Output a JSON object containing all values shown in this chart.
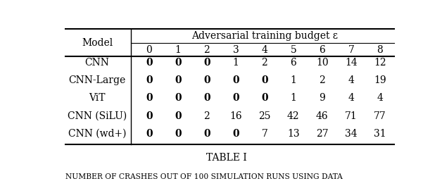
{
  "col_header_top": "Adversarial training budget ε",
  "col_header_nums": [
    "0",
    "1",
    "2",
    "3",
    "4",
    "5",
    "6",
    "7",
    "8"
  ],
  "row_header": "Model",
  "models": [
    "CNN",
    "CNN-Large",
    "ViT",
    "CNN (SiLU)",
    "CNN (wd+)"
  ],
  "data": [
    [
      "0",
      "0",
      "0",
      "1",
      "2",
      "6",
      "10",
      "14",
      "12"
    ],
    [
      "0",
      "0",
      "0",
      "0",
      "0",
      "1",
      "2",
      "4",
      "19"
    ],
    [
      "0",
      "0",
      "0",
      "0",
      "0",
      "1",
      "9",
      "4",
      "4"
    ],
    [
      "0",
      "0",
      "2",
      "16",
      "25",
      "42",
      "46",
      "71",
      "77"
    ],
    [
      "0",
      "0",
      "0",
      "0",
      "7",
      "13",
      "27",
      "34",
      "31"
    ]
  ],
  "bold_data": {
    "CNN": [
      0,
      1,
      2
    ],
    "CNN-Large": [
      0,
      1,
      2,
      3,
      4
    ],
    "ViT": [
      0,
      1,
      2,
      3,
      4
    ],
    "CNN (SiLU)": [
      0,
      1
    ],
    "CNN (wd+)": [
      0,
      1,
      2,
      3
    ]
  },
  "caption": "TABLE I",
  "subcaption": "Number of crashes out of 100 simulation runs using data",
  "bg_color": "#ffffff",
  "text_color": "#000000",
  "fontsize": 10,
  "caption_fontsize": 10
}
